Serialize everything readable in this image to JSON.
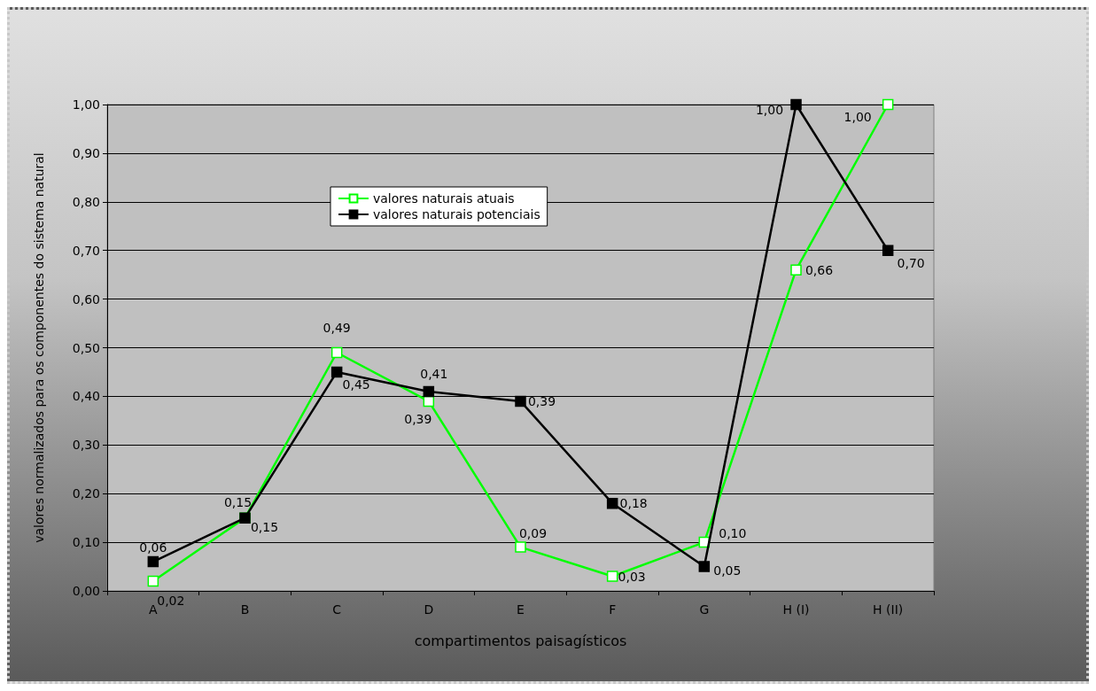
{
  "chart_data": {
    "type": "line",
    "xlabel": "compartimentos paisagísticos",
    "ylabel": "valores normalizados para os componentes do sistema natural",
    "categories": [
      "A",
      "B",
      "C",
      "D",
      "E",
      "F",
      "G",
      "H (I)",
      "H (II)"
    ],
    "series": [
      {
        "name": "valores naturais atuais",
        "color": "#00ff00",
        "values": [
          0.02,
          0.15,
          0.49,
          0.39,
          0.09,
          0.03,
          0.1,
          0.66,
          1.0
        ],
        "value_labels": [
          "0,02",
          "0,15",
          "0,49",
          "0,39",
          "0,09",
          "0,03",
          "0,10",
          "0,66",
          "1,00"
        ]
      },
      {
        "name": "valores naturais potenciais",
        "color": "#000000",
        "values": [
          0.06,
          0.15,
          0.45,
          0.41,
          0.39,
          0.18,
          0.05,
          1.0,
          0.7
        ],
        "value_labels": [
          "0,06",
          "0,15",
          "0,45",
          "0,41",
          "0,39",
          "0,18",
          "0,05",
          "1,00",
          "0,70"
        ]
      }
    ],
    "ylim": [
      0,
      1
    ],
    "yticks": [
      {
        "value": 0,
        "label": "0,00"
      },
      {
        "value": 0.1,
        "label": "0,10"
      },
      {
        "value": 0.2,
        "label": "0,20"
      },
      {
        "value": 0.3,
        "label": "0,30"
      },
      {
        "value": 0.4,
        "label": "0,40"
      },
      {
        "value": 0.5,
        "label": "0,50"
      },
      {
        "value": 0.6,
        "label": "0,60"
      },
      {
        "value": 0.7,
        "label": "0,70"
      },
      {
        "value": 0.8,
        "label": "0,80"
      },
      {
        "value": 0.9,
        "label": "0,90"
      },
      {
        "value": 1,
        "label": "1,00"
      }
    ],
    "grid": "y",
    "legend": "top left",
    "marker": "square",
    "line_style": "solid"
  }
}
